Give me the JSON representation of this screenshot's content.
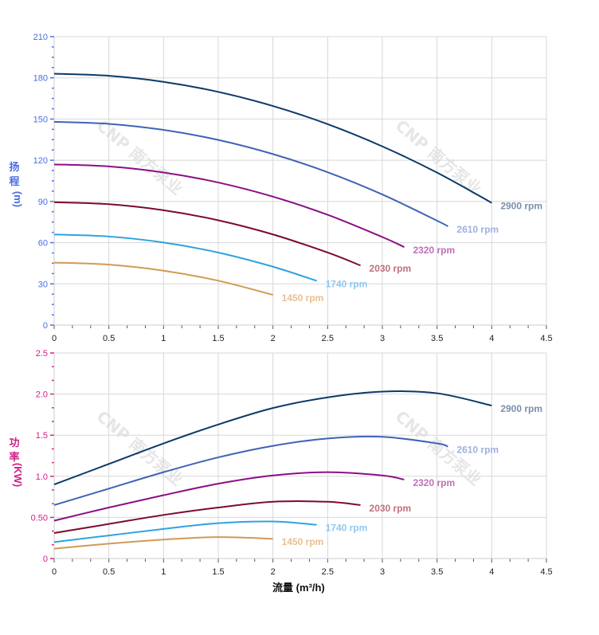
{
  "watermark": "CNP 南方泵业",
  "chart_data": [
    {
      "type": "line",
      "title": "",
      "xlabel": "",
      "ylabel_chars": [
        "扬",
        "程",
        "(m)"
      ],
      "xlim": [
        0,
        4.5
      ],
      "ylim": [
        0,
        210
      ],
      "xticks": [
        "0",
        "0.5",
        "1",
        "1.5",
        "2",
        "2.5",
        "3",
        "3.5",
        "4",
        "4.5"
      ],
      "yticks": [
        "0",
        "30",
        "60",
        "90",
        "120",
        "150",
        "180",
        "210"
      ],
      "grid": true,
      "axis_color": "#4a6ee0",
      "series": [
        {
          "name": "2900 rpm",
          "color": "#0b3a68",
          "label_color": "#7a90aa",
          "x": [
            0,
            0.5,
            1,
            1.5,
            2,
            2.5,
            3,
            3.5,
            4
          ],
          "y": [
            183,
            181.5,
            177.1,
            169.8,
            159.5,
            146.3,
            130.1,
            111,
            89
          ]
        },
        {
          "name": "2610 rpm",
          "color": "#3f63b6",
          "label_color": "#9fb0e0",
          "x": [
            0,
            0.5,
            1,
            1.5,
            2,
            2.5,
            3,
            3.5,
            3.6
          ],
          "y": [
            148,
            146.5,
            142.1,
            134.8,
            124.5,
            111.3,
            95.1,
            76,
            71.9
          ]
        },
        {
          "name": "2320 rpm",
          "color": "#8b0f86",
          "label_color": "#c070b8",
          "x": [
            0,
            0.5,
            1,
            1.5,
            2,
            2.5,
            3,
            3.2
          ],
          "y": [
            117,
            115.5,
            111.1,
            103.8,
            93.5,
            80.3,
            64.1,
            56.8
          ]
        },
        {
          "name": "2030 rpm",
          "color": "#7c0a2e",
          "label_color": "#c07080",
          "x": [
            0,
            0.5,
            1,
            1.5,
            2,
            2.5,
            2.8
          ],
          "y": [
            89.5,
            88,
            83.6,
            76.3,
            66,
            52.8,
            43.4
          ]
        },
        {
          "name": "1740 rpm",
          "color": "#2fa2e0",
          "label_color": "#90c8f0",
          "x": [
            0,
            0.5,
            1,
            1.5,
            2,
            2.4
          ],
          "y": [
            66,
            64.5,
            60.1,
            52.8,
            42.5,
            32.2
          ]
        },
        {
          "name": "1450 rpm",
          "color": "#d29a55",
          "label_color": "#e8c090",
          "x": [
            0,
            0.5,
            1,
            1.5,
            2
          ],
          "y": [
            45.5,
            44,
            39.6,
            32.3,
            22
          ]
        }
      ]
    },
    {
      "type": "line",
      "title": "",
      "xlabel": "流量 (m³/h)",
      "ylabel_chars": [
        "功",
        "率",
        "(KW)"
      ],
      "xlim": [
        0,
        4.5
      ],
      "ylim": [
        0,
        2.5
      ],
      "xticks": [
        "0",
        "0.5",
        "1",
        "1.5",
        "2",
        "2.5",
        "3",
        "3.5",
        "4",
        "4.5"
      ],
      "yticks": [
        "0",
        "0.50",
        "1.0",
        "1.5",
        "2.0",
        "2.5"
      ],
      "grid": true,
      "axis_color": "#d0208a",
      "series": [
        {
          "name": "2900 rpm",
          "color": "#0b3a68",
          "label_color": "#7a90aa",
          "x": [
            0,
            0.5,
            1,
            1.5,
            2,
            2.5,
            3,
            3.5,
            4
          ],
          "y": [
            0.9,
            1.15,
            1.4,
            1.63,
            1.83,
            1.96,
            2.03,
            2.01,
            1.86
          ]
        },
        {
          "name": "2610 rpm",
          "color": "#3f63b6",
          "label_color": "#9fb0e0",
          "x": [
            0,
            0.5,
            1,
            1.5,
            2,
            2.5,
            3,
            3.5,
            3.6
          ],
          "y": [
            0.65,
            0.85,
            1.05,
            1.23,
            1.37,
            1.46,
            1.48,
            1.4,
            1.36
          ]
        },
        {
          "name": "2320 rpm",
          "color": "#8b0f86",
          "label_color": "#c070b8",
          "x": [
            0,
            0.5,
            1,
            1.5,
            2,
            2.5,
            3,
            3.2
          ],
          "y": [
            0.46,
            0.62,
            0.77,
            0.91,
            1.01,
            1.05,
            1.01,
            0.96
          ]
        },
        {
          "name": "2030 rpm",
          "color": "#7c0a2e",
          "label_color": "#c07080",
          "x": [
            0,
            0.5,
            1,
            1.5,
            2,
            2.5,
            2.8
          ],
          "y": [
            0.31,
            0.42,
            0.53,
            0.62,
            0.69,
            0.69,
            0.65
          ]
        },
        {
          "name": "1740 rpm",
          "color": "#2fa2e0",
          "label_color": "#90c8f0",
          "x": [
            0,
            0.5,
            1,
            1.5,
            2,
            2.4
          ],
          "y": [
            0.2,
            0.28,
            0.36,
            0.43,
            0.45,
            0.41
          ]
        },
        {
          "name": "1450 rpm",
          "color": "#d29a55",
          "label_color": "#e8c090",
          "x": [
            0,
            0.5,
            1,
            1.5,
            2
          ],
          "y": [
            0.12,
            0.18,
            0.23,
            0.26,
            0.24
          ]
        }
      ]
    }
  ]
}
